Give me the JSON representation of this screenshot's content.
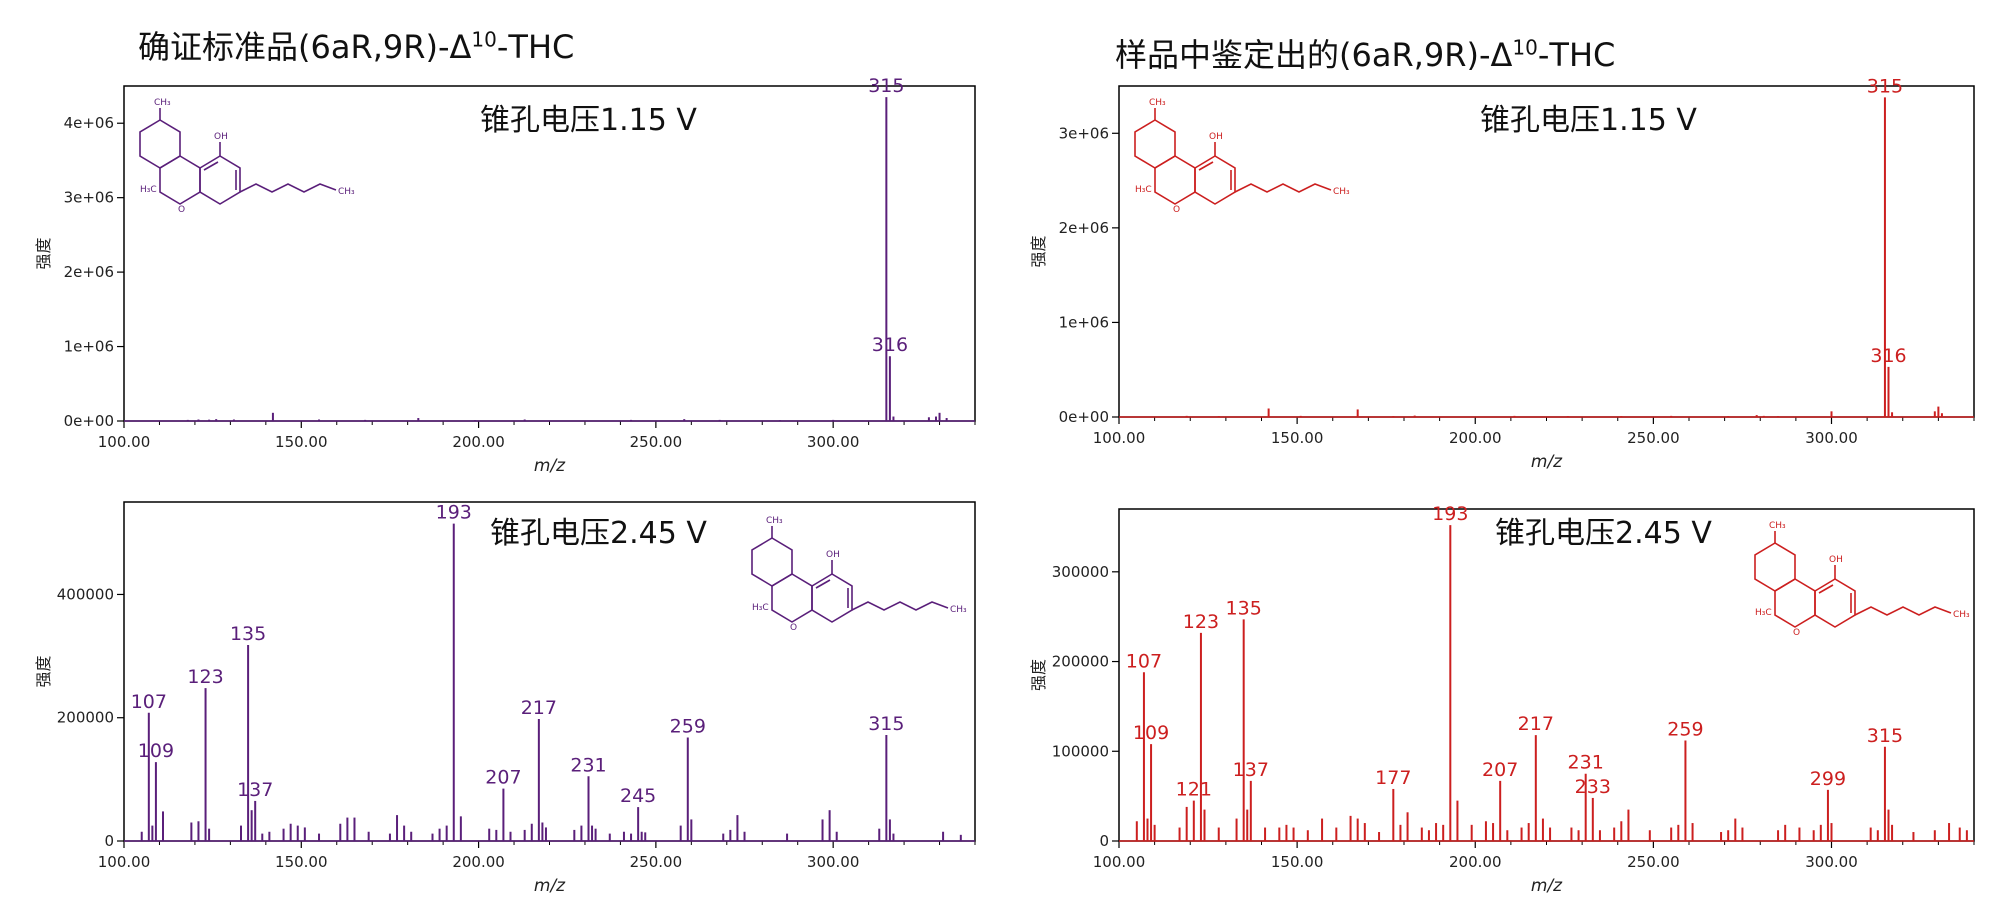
{
  "titles": {
    "left_main": "确证标准品(6aR,9R)-Δ",
    "left_sup": "10",
    "left_tail": "-THC",
    "right_main": "样品中鉴定出的(6aR,9R)-Δ",
    "right_sup": "10",
    "right_tail": "-THC"
  },
  "colors": {
    "standard": "#5a1f7a",
    "sample": "#cc1f1f",
    "axis": "#000000"
  },
  "structure_labels": {
    "ch3": "CH₃",
    "oh": "OH",
    "h3c": "H₃C",
    "o": "O"
  },
  "chart_data": [
    {
      "id": "std-115",
      "type": "bar",
      "voltage_label": "锥孔电压1.15 V",
      "xlabel": "m/z",
      "ylabel": "强度",
      "xlim": [
        100,
        340
      ],
      "ylim": [
        0,
        4500000
      ],
      "xticks": [
        100,
        150,
        200,
        250,
        300
      ],
      "xtick_labels": [
        "100.00",
        "150.00",
        "200.00",
        "250.00",
        "300.00"
      ],
      "yticks": [
        0,
        1000000,
        2000000,
        3000000,
        4000000
      ],
      "ytick_labels": [
        "0e+00",
        "1e+06",
        "2e+06",
        "3e+06",
        "4e+06"
      ],
      "peaks": [
        [
          118,
          15000
        ],
        [
          121,
          20000
        ],
        [
          124,
          18000
        ],
        [
          126,
          25000
        ],
        [
          131,
          20000
        ],
        [
          142,
          110000
        ],
        [
          155,
          20000
        ],
        [
          168,
          15000
        ],
        [
          183,
          40000
        ],
        [
          199,
          12000
        ],
        [
          213,
          20000
        ],
        [
          243,
          15000
        ],
        [
          258,
          25000
        ],
        [
          268,
          15000
        ],
        [
          285,
          12000
        ],
        [
          300,
          15000
        ],
        [
          315,
          4350000
        ],
        [
          316,
          870000
        ],
        [
          317,
          60000
        ],
        [
          327,
          50000
        ],
        [
          329,
          60000
        ],
        [
          330,
          110000
        ],
        [
          332,
          40000
        ]
      ],
      "labeled_peaks": [
        {
          "x": 315,
          "y": 4350000,
          "text": "315"
        },
        {
          "x": 316,
          "y": 870000,
          "text": "316"
        }
      ]
    },
    {
      "id": "std-245",
      "type": "bar",
      "voltage_label": "锥孔电压2.45 V",
      "xlabel": "m/z",
      "ylabel": "强度",
      "xlim": [
        100,
        340
      ],
      "ylim": [
        0,
        550000
      ],
      "xticks": [
        100,
        150,
        200,
        250,
        300
      ],
      "xtick_labels": [
        "100.00",
        "150.00",
        "200.00",
        "250.00",
        "300.00"
      ],
      "yticks": [
        0,
        200000,
        400000
      ],
      "ytick_labels": [
        "0",
        "200000",
        "400000"
      ],
      "peaks": [
        [
          105,
          15000
        ],
        [
          107,
          208000
        ],
        [
          108,
          25000
        ],
        [
          109,
          128000
        ],
        [
          111,
          48000
        ],
        [
          119,
          30000
        ],
        [
          121,
          32000
        ],
        [
          123,
          248000
        ],
        [
          124,
          20000
        ],
        [
          133,
          25000
        ],
        [
          135,
          318000
        ],
        [
          136,
          50000
        ],
        [
          137,
          65000
        ],
        [
          139,
          12000
        ],
        [
          141,
          15000
        ],
        [
          145,
          20000
        ],
        [
          147,
          28000
        ],
        [
          149,
          25000
        ],
        [
          151,
          22000
        ],
        [
          155,
          12000
        ],
        [
          161,
          28000
        ],
        [
          163,
          38000
        ],
        [
          165,
          38000
        ],
        [
          169,
          15000
        ],
        [
          175,
          12000
        ],
        [
          177,
          42000
        ],
        [
          179,
          25000
        ],
        [
          181,
          15000
        ],
        [
          187,
          12000
        ],
        [
          189,
          20000
        ],
        [
          191,
          25000
        ],
        [
          193,
          515000
        ],
        [
          195,
          40000
        ],
        [
          203,
          20000
        ],
        [
          205,
          18000
        ],
        [
          207,
          85000
        ],
        [
          209,
          15000
        ],
        [
          213,
          18000
        ],
        [
          215,
          28000
        ],
        [
          217,
          198000
        ],
        [
          218,
          30000
        ],
        [
          219,
          22000
        ],
        [
          227,
          18000
        ],
        [
          229,
          25000
        ],
        [
          231,
          105000
        ],
        [
          232,
          25000
        ],
        [
          233,
          20000
        ],
        [
          237,
          12000
        ],
        [
          241,
          15000
        ],
        [
          243,
          12000
        ],
        [
          245,
          55000
        ],
        [
          246,
          15000
        ],
        [
          247,
          14000
        ],
        [
          257,
          25000
        ],
        [
          259,
          168000
        ],
        [
          260,
          35000
        ],
        [
          269,
          12000
        ],
        [
          271,
          18000
        ],
        [
          273,
          42000
        ],
        [
          275,
          15000
        ],
        [
          287,
          12000
        ],
        [
          297,
          35000
        ],
        [
          299,
          50000
        ],
        [
          301,
          15000
        ],
        [
          313,
          20000
        ],
        [
          315,
          172000
        ],
        [
          316,
          35000
        ],
        [
          317,
          12000
        ],
        [
          331,
          15000
        ],
        [
          336,
          10000
        ]
      ],
      "labeled_peaks": [
        {
          "x": 107,
          "y": 208000,
          "text": "107"
        },
        {
          "x": 109,
          "y": 128000,
          "text": "109"
        },
        {
          "x": 123,
          "y": 248000,
          "text": "123"
        },
        {
          "x": 135,
          "y": 318000,
          "text": "135"
        },
        {
          "x": 137,
          "y": 65000,
          "text": "137"
        },
        {
          "x": 193,
          "y": 515000,
          "text": "193"
        },
        {
          "x": 207,
          "y": 85000,
          "text": "207"
        },
        {
          "x": 217,
          "y": 198000,
          "text": "217"
        },
        {
          "x": 231,
          "y": 105000,
          "text": "231"
        },
        {
          "x": 245,
          "y": 55000,
          "text": "245"
        },
        {
          "x": 259,
          "y": 168000,
          "text": "259"
        },
        {
          "x": 315,
          "y": 172000,
          "text": "315"
        }
      ]
    },
    {
      "id": "smp-115",
      "type": "bar",
      "voltage_label": "锥孔电压1.15 V",
      "xlabel": "m/z",
      "ylabel": "强度",
      "xlim": [
        100,
        340
      ],
      "ylim": [
        0,
        3500000
      ],
      "xticks": [
        100,
        150,
        200,
        250,
        300
      ],
      "xtick_labels": [
        "100.00",
        "150.00",
        "200.00",
        "250.00",
        "300.00"
      ],
      "yticks": [
        0,
        1000000,
        2000000,
        3000000
      ],
      "ytick_labels": [
        "0e+00",
        "1e+06",
        "2e+06",
        "3e+06"
      ],
      "peaks": [
        [
          119,
          12000
        ],
        [
          128,
          10000
        ],
        [
          142,
          90000
        ],
        [
          151,
          12000
        ],
        [
          167,
          80000
        ],
        [
          177,
          10000
        ],
        [
          183,
          15000
        ],
        [
          211,
          12000
        ],
        [
          226,
          10000
        ],
        [
          241,
          10000
        ],
        [
          255,
          12000
        ],
        [
          271,
          10000
        ],
        [
          279,
          20000
        ],
        [
          281,
          12000
        ],
        [
          285,
          10000
        ],
        [
          300,
          60000
        ],
        [
          315,
          3380000
        ],
        [
          316,
          530000
        ],
        [
          317,
          50000
        ],
        [
          329,
          60000
        ],
        [
          330,
          110000
        ],
        [
          331,
          40000
        ]
      ],
      "labeled_peaks": [
        {
          "x": 315,
          "y": 3380000,
          "text": "315"
        },
        {
          "x": 316,
          "y": 530000,
          "text": "316"
        }
      ]
    },
    {
      "id": "smp-245",
      "type": "bar",
      "voltage_label": "锥孔电压2.45 V",
      "xlabel": "m/z",
      "ylabel": "强度",
      "xlim": [
        100,
        340
      ],
      "ylim": [
        0,
        370000
      ],
      "xticks": [
        100,
        150,
        200,
        250,
        300
      ],
      "xtick_labels": [
        "100.00",
        "150.00",
        "200.00",
        "250.00",
        "300.00"
      ],
      "yticks": [
        0,
        100000,
        200000,
        300000
      ],
      "ytick_labels": [
        "0",
        "100000",
        "200000",
        "300000"
      ],
      "peaks": [
        [
          105,
          22000
        ],
        [
          107,
          188000
        ],
        [
          108,
          25000
        ],
        [
          109,
          108000
        ],
        [
          110,
          18000
        ],
        [
          117,
          15000
        ],
        [
          119,
          38000
        ],
        [
          121,
          45000
        ],
        [
          123,
          232000
        ],
        [
          124,
          35000
        ],
        [
          128,
          15000
        ],
        [
          133,
          25000
        ],
        [
          135,
          247000
        ],
        [
          136,
          35000
        ],
        [
          137,
          67000
        ],
        [
          141,
          15000
        ],
        [
          145,
          15000
        ],
        [
          147,
          18000
        ],
        [
          149,
          15000
        ],
        [
          153,
          12000
        ],
        [
          157,
          25000
        ],
        [
          161,
          15000
        ],
        [
          165,
          28000
        ],
        [
          167,
          25000
        ],
        [
          169,
          20000
        ],
        [
          173,
          10000
        ],
        [
          177,
          58000
        ],
        [
          179,
          18000
        ],
        [
          181,
          32000
        ],
        [
          185,
          15000
        ],
        [
          187,
          12000
        ],
        [
          189,
          20000
        ],
        [
          191,
          18000
        ],
        [
          193,
          352000
        ],
        [
          195,
          45000
        ],
        [
          199,
          18000
        ],
        [
          203,
          22000
        ],
        [
          205,
          20000
        ],
        [
          207,
          67000
        ],
        [
          209,
          12000
        ],
        [
          213,
          15000
        ],
        [
          215,
          20000
        ],
        [
          217,
          118000
        ],
        [
          219,
          25000
        ],
        [
          221,
          15000
        ],
        [
          227,
          15000
        ],
        [
          229,
          12000
        ],
        [
          231,
          75000
        ],
        [
          233,
          48000
        ],
        [
          235,
          12000
        ],
        [
          239,
          15000
        ],
        [
          241,
          22000
        ],
        [
          243,
          35000
        ],
        [
          249,
          12000
        ],
        [
          255,
          15000
        ],
        [
          257,
          18000
        ],
        [
          259,
          112000
        ],
        [
          261,
          20000
        ],
        [
          269,
          10000
        ],
        [
          271,
          12000
        ],
        [
          273,
          25000
        ],
        [
          275,
          15000
        ],
        [
          285,
          12000
        ],
        [
          287,
          18000
        ],
        [
          291,
          15000
        ],
        [
          295,
          12000
        ],
        [
          297,
          18000
        ],
        [
          299,
          57000
        ],
        [
          300,
          20000
        ],
        [
          311,
          15000
        ],
        [
          313,
          12000
        ],
        [
          315,
          105000
        ],
        [
          316,
          35000
        ],
        [
          317,
          18000
        ],
        [
          323,
          10000
        ],
        [
          329,
          12000
        ],
        [
          333,
          20000
        ],
        [
          336,
          15000
        ],
        [
          338,
          12000
        ]
      ],
      "labeled_peaks": [
        {
          "x": 107,
          "y": 188000,
          "text": "107"
        },
        {
          "x": 109,
          "y": 108000,
          "text": "109"
        },
        {
          "x": 121,
          "y": 45000,
          "text": "121"
        },
        {
          "x": 123,
          "y": 232000,
          "text": "123"
        },
        {
          "x": 135,
          "y": 247000,
          "text": "135"
        },
        {
          "x": 137,
          "y": 67000,
          "text": "137"
        },
        {
          "x": 177,
          "y": 58000,
          "text": "177"
        },
        {
          "x": 193,
          "y": 352000,
          "text": "193"
        },
        {
          "x": 207,
          "y": 67000,
          "text": "207"
        },
        {
          "x": 217,
          "y": 118000,
          "text": "217"
        },
        {
          "x": 231,
          "y": 75000,
          "text": "231"
        },
        {
          "x": 233,
          "y": 48000,
          "text": "233"
        },
        {
          "x": 259,
          "y": 112000,
          "text": "259"
        },
        {
          "x": 299,
          "y": 57000,
          "text": "299"
        },
        {
          "x": 315,
          "y": 105000,
          "text": "315"
        }
      ]
    }
  ]
}
